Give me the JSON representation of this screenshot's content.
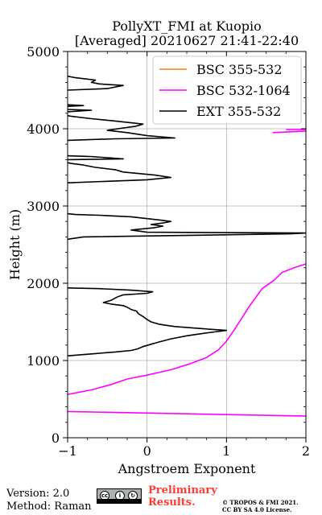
{
  "title_line1": "PollyXT_FMI at Kuopio",
  "title_line2": "[Averaged] 20210627 21:41-22:40",
  "footer": {
    "version": "Version: 2.0",
    "method": "Method: Raman",
    "preliminary_line1": "Preliminary",
    "preliminary_line2": "Results.",
    "copyright_line1": "© TROPOS & FMI 2021.",
    "copyright_line2": "CC BY SA 4.0 License.",
    "license_icon": "cc-by-sa-icon"
  },
  "chart_data": {
    "type": "line",
    "title": "PollyXT_FMI at Kuopio [Averaged] 20210627 21:41-22:40",
    "xlabel": "Angstroem Exponent",
    "ylabel": "Height (m)",
    "xlim": [
      -1,
      2
    ],
    "ylim": [
      0,
      5000
    ],
    "xticks": [
      -1,
      0,
      1,
      2
    ],
    "yticks": [
      0,
      1000,
      2000,
      3000,
      4000,
      5000
    ],
    "xtick_labels": [
      "−1",
      "0",
      "1",
      "2"
    ],
    "ytick_labels": [
      "0",
      "1000",
      "2000",
      "3000",
      "4000",
      "5000"
    ],
    "grid": true,
    "legend_position": "top-right",
    "series": [
      {
        "name": "BSC 355-532",
        "color": "#ff7f0e",
        "points": []
      },
      {
        "name": "BSC 532-1064",
        "color": "#ff00ff",
        "segments": [
          [
            [
              2.0,
              280
            ],
            [
              1.0,
              300
            ],
            [
              0.0,
              320
            ],
            [
              -1.0,
              340
            ]
          ],
          [
            [
              -1.0,
              560
            ],
            [
              -0.7,
              620
            ],
            [
              -0.45,
              690
            ],
            [
              -0.25,
              760
            ],
            [
              0.0,
              810
            ],
            [
              0.3,
              880
            ],
            [
              0.55,
              960
            ],
            [
              0.75,
              1040
            ],
            [
              0.9,
              1140
            ],
            [
              1.0,
              1250
            ],
            [
              1.1,
              1400
            ],
            [
              1.2,
              1560
            ],
            [
              1.3,
              1720
            ],
            [
              1.45,
              1930
            ],
            [
              1.6,
              2040
            ],
            [
              1.7,
              2140
            ],
            [
              1.85,
              2200
            ],
            [
              2.0,
              2250
            ]
          ],
          [
            [
              1.58,
              3950
            ],
            [
              1.8,
              3960
            ],
            [
              2.0,
              3970
            ]
          ],
          [
            [
              1.75,
              3990
            ],
            [
              2.0,
              3990
            ]
          ]
        ]
      },
      {
        "name": "EXT 355-532",
        "color": "#000000",
        "segments": [
          [
            [
              -1.0,
              1060
            ],
            [
              -0.65,
              1090
            ],
            [
              -0.4,
              1110
            ],
            [
              -0.2,
              1130
            ],
            [
              -0.12,
              1150
            ],
            [
              -0.05,
              1180
            ],
            [
              0.05,
              1210
            ],
            [
              0.15,
              1240
            ],
            [
              0.3,
              1280
            ],
            [
              0.5,
              1320
            ],
            [
              0.7,
              1350
            ],
            [
              0.85,
              1370
            ],
            [
              1.0,
              1390
            ],
            [
              0.85,
              1400
            ],
            [
              0.6,
              1420
            ],
            [
              0.35,
              1440
            ],
            [
              0.15,
              1470
            ],
            [
              0.05,
              1500
            ],
            [
              0.0,
              1530
            ],
            [
              -0.05,
              1570
            ],
            [
              -0.1,
              1600
            ],
            [
              -0.12,
              1620
            ],
            [
              -0.13,
              1640
            ],
            [
              -0.2,
              1660
            ],
            [
              -0.25,
              1690
            ],
            [
              -0.3,
              1710
            ],
            [
              -0.45,
              1730
            ],
            [
              -0.55,
              1750
            ],
            [
              -0.45,
              1780
            ],
            [
              -0.38,
              1820
            ],
            [
              -0.3,
              1850
            ],
            [
              0.0,
              1870
            ],
            [
              0.07,
              1890
            ],
            [
              -0.2,
              1910
            ],
            [
              -0.6,
              1930
            ],
            [
              -1.0,
              1940
            ]
          ],
          [
            [
              -1.0,
              2570
            ],
            [
              -0.8,
              2600
            ],
            [
              1.8,
              2640
            ],
            [
              2.0,
              2650
            ],
            [
              0.0,
              2660
            ],
            [
              -0.2,
              2690
            ],
            [
              0.1,
              2720
            ],
            [
              0.2,
              2740
            ],
            [
              0.05,
              2760
            ],
            [
              0.2,
              2780
            ],
            [
              0.3,
              2800
            ],
            [
              0.15,
              2820
            ],
            [
              -0.2,
              2860
            ],
            [
              -0.6,
              2880
            ],
            [
              -0.9,
              2890
            ],
            [
              -1.0,
              2900
            ]
          ],
          [
            [
              -1.0,
              3300
            ],
            [
              -0.5,
              3320
            ],
            [
              0.0,
              3340
            ],
            [
              0.3,
              3370
            ],
            [
              0.1,
              3400
            ],
            [
              -0.3,
              3440
            ],
            [
              -0.4,
              3470
            ],
            [
              -0.65,
              3500
            ],
            [
              -0.8,
              3530
            ],
            [
              -0.95,
              3550
            ],
            [
              -1.0,
              3560
            ]
          ],
          [
            [
              -1.0,
              3600
            ],
            [
              -0.3,
              3610
            ],
            [
              -0.7,
              3640
            ],
            [
              -1.0,
              3650
            ]
          ],
          [
            [
              -1.0,
              3850
            ],
            [
              -0.4,
              3870
            ],
            [
              0.35,
              3880
            ],
            [
              0.0,
              3910
            ],
            [
              -0.25,
              3950
            ],
            [
              -0.5,
              3980
            ],
            [
              -0.3,
              4010
            ],
            [
              -0.15,
              4030
            ],
            [
              -0.05,
              4060
            ],
            [
              -0.4,
              4100
            ],
            [
              -0.7,
              4130
            ],
            [
              -0.95,
              4160
            ],
            [
              -1.0,
              4170
            ]
          ],
          [
            [
              -1.0,
              4220
            ],
            [
              -0.7,
              4240
            ],
            [
              -1.0,
              4250
            ]
          ],
          [
            [
              -1.0,
              4290
            ],
            [
              -0.8,
              4300
            ],
            [
              -1.0,
              4310
            ]
          ],
          [
            [
              -1.0,
              4500
            ],
            [
              -0.5,
              4520
            ],
            [
              -0.3,
              4560
            ],
            [
              -0.6,
              4580
            ],
            [
              -0.7,
              4600
            ],
            [
              -0.65,
              4630
            ],
            [
              -0.9,
              4660
            ],
            [
              -1.0,
              4680
            ]
          ]
        ]
      }
    ]
  }
}
